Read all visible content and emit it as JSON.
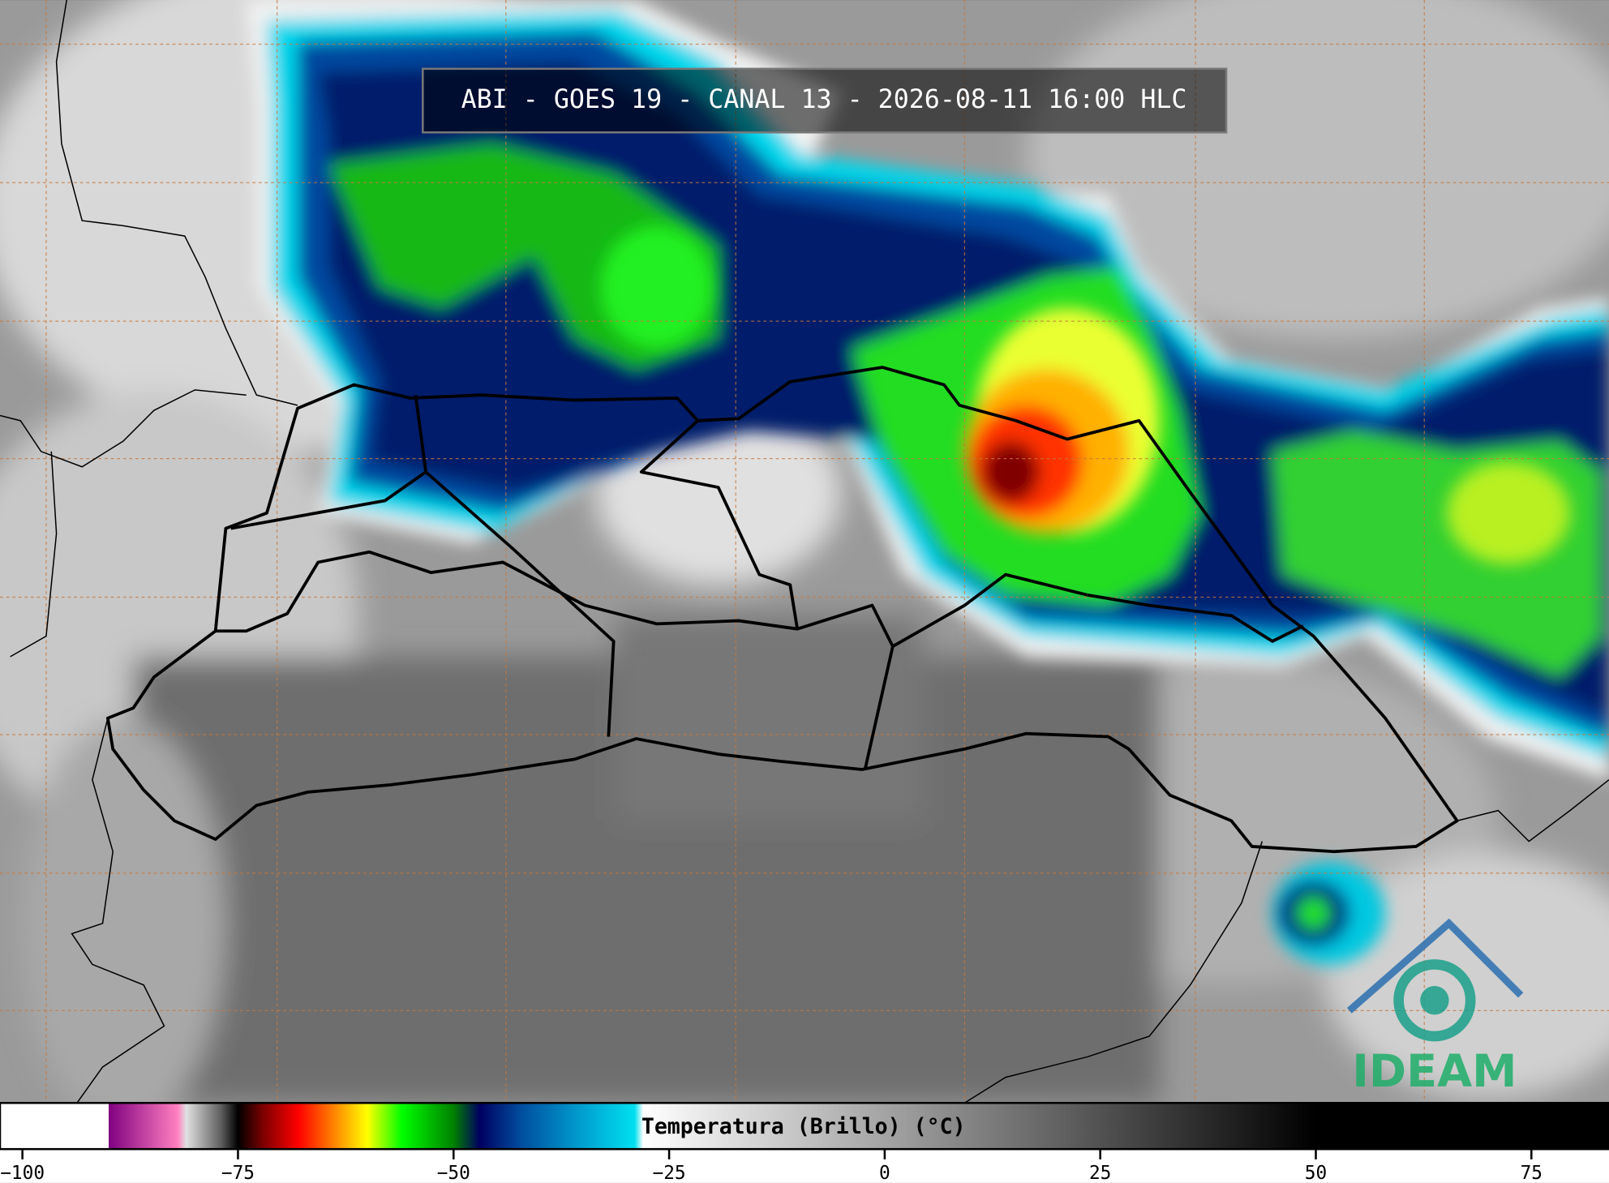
{
  "title": "ABI - GOES 19 - CANAL 13 - 2026-08-11 16:00 HLC",
  "logo": "IDEAM",
  "colorbar": {
    "label": "Temperatura (Brillo) (°C)",
    "range": [
      -102.6,
      84
    ],
    "ticks": [
      {
        "value": -100,
        "label": "−100"
      },
      {
        "value": -75,
        "label": "−75"
      },
      {
        "value": -50,
        "label": "−50"
      },
      {
        "value": -25,
        "label": "−25"
      },
      0,
      25,
      50,
      75
    ],
    "stops": [
      [
        -102.6,
        "#ffffff"
      ],
      [
        -90,
        "#ffffff"
      ],
      [
        -90,
        "#800080"
      ],
      [
        -82,
        "#ff80c0"
      ],
      [
        -81,
        "#e0e0e0"
      ],
      [
        -77,
        "#606060"
      ],
      [
        -75,
        "#000000"
      ],
      [
        -72,
        "#800000"
      ],
      [
        -68,
        "#ff0000"
      ],
      [
        -64,
        "#ff8000"
      ],
      [
        -60,
        "#ffff00"
      ],
      [
        -56,
        "#00ff00"
      ],
      [
        -50,
        "#008000"
      ],
      [
        -47,
        "#000060"
      ],
      [
        -42,
        "#0050a0"
      ],
      [
        -35,
        "#00a0d0"
      ],
      [
        -29,
        "#00e0f0"
      ],
      [
        -28,
        "#ffffff"
      ],
      [
        50,
        "#000000"
      ],
      [
        84,
        "#000000"
      ]
    ]
  }
}
